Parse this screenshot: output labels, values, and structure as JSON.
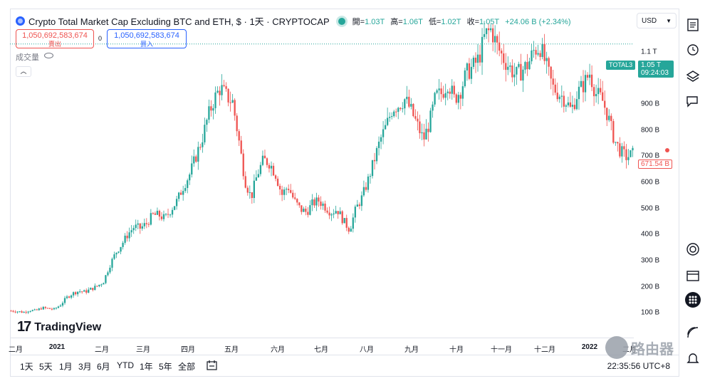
{
  "header": {
    "title": "Crypto Total Market Cap Excluding BTC and ETH, $ · 1天 · CRYPTOCAP",
    "ohlc": [
      {
        "label": "開=",
        "value": "1.03T"
      },
      {
        "label": "高=",
        "value": "1.06T"
      },
      {
        "label": "低=",
        "value": "1.02T"
      },
      {
        "label": "收=",
        "value": "1.05T"
      }
    ],
    "change": "+24.06 B (+2.34%)"
  },
  "trade": {
    "sell_price": "1,050,692,583,674",
    "sell_label": "賣出",
    "spread": "0",
    "buy_price": "1,050,692,583,674",
    "buy_label": "買入"
  },
  "volume_label": "成交量",
  "currency": "USD",
  "price_line": {
    "symbol": "TOTAL3",
    "price": "1.05 T",
    "countdown": "09:24:03",
    "last_visible": "671.54 B"
  },
  "y_axis": {
    "labels": [
      "1.1 T",
      "900 B",
      "800 B",
      "700 B",
      "600 B",
      "500 B",
      "400 B",
      "300 B",
      "200 B",
      "100 B"
    ]
  },
  "x_axis": {
    "labels": [
      "二月",
      "2021",
      "二月",
      "三月",
      "四月",
      "五月",
      "六月",
      "七月",
      "八月",
      "九月",
      "十月",
      "十一月",
      "十二月",
      "2022",
      "二月"
    ]
  },
  "bottom_bar": {
    "timeframes": [
      "1天",
      "5天",
      "1月",
      "3月",
      "6月",
      "YTD",
      "1年",
      "5年",
      "全部"
    ],
    "clock": "22:35:56 UTC+8"
  },
  "watermark": {
    "brand": "TradingView",
    "site": "路由器"
  },
  "colors": {
    "up": "#26a69a",
    "down": "#ef5350",
    "accent": "#2962ff"
  },
  "sidebar_icons": [
    "watchlist-icon",
    "alarm-clock-icon",
    "layers-icon",
    "chat-icon",
    "target-icon",
    "calendar-icon",
    "grid-icon",
    "signal-icon",
    "bell-icon"
  ],
  "chart_data": {
    "type": "candlestick",
    "title": "",
    "x_range": [
      "2021-01",
      "2022-02"
    ],
    "y_unit": "B",
    "ylim": [
      50,
      1160
    ],
    "last_close": 671.54,
    "series": [
      {
        "name": "TOTAL3",
        "close_path": [
          130,
          128,
          125,
          132,
          130,
          140,
          138,
          135,
          150,
          175,
          190,
          198,
          195,
          205,
          215,
          230,
          285,
          330,
          360,
          395,
          420,
          415,
          430,
          460,
          460,
          448,
          480,
          510,
          560,
          600,
          660,
          720,
          800,
          860,
          900,
          870,
          850,
          720,
          580,
          520,
          600,
          650,
          640,
          600,
          530,
          560,
          510,
          480,
          470,
          500,
          510,
          490,
          470,
          480,
          440,
          410,
          480,
          520,
          580,
          650,
          720,
          770,
          830,
          840,
          860,
          820,
          770,
          720,
          780,
          870,
          880,
          920,
          860,
          890,
          950,
          970,
          1000,
          1080,
          1100,
          1040,
          1000,
          970,
          940,
          960,
          980,
          1030,
          1040,
          970,
          900,
          880,
          860,
          820,
          880,
          910,
          950,
          880,
          860,
          800,
          720,
          680,
          660,
          671
        ]
      }
    ]
  }
}
